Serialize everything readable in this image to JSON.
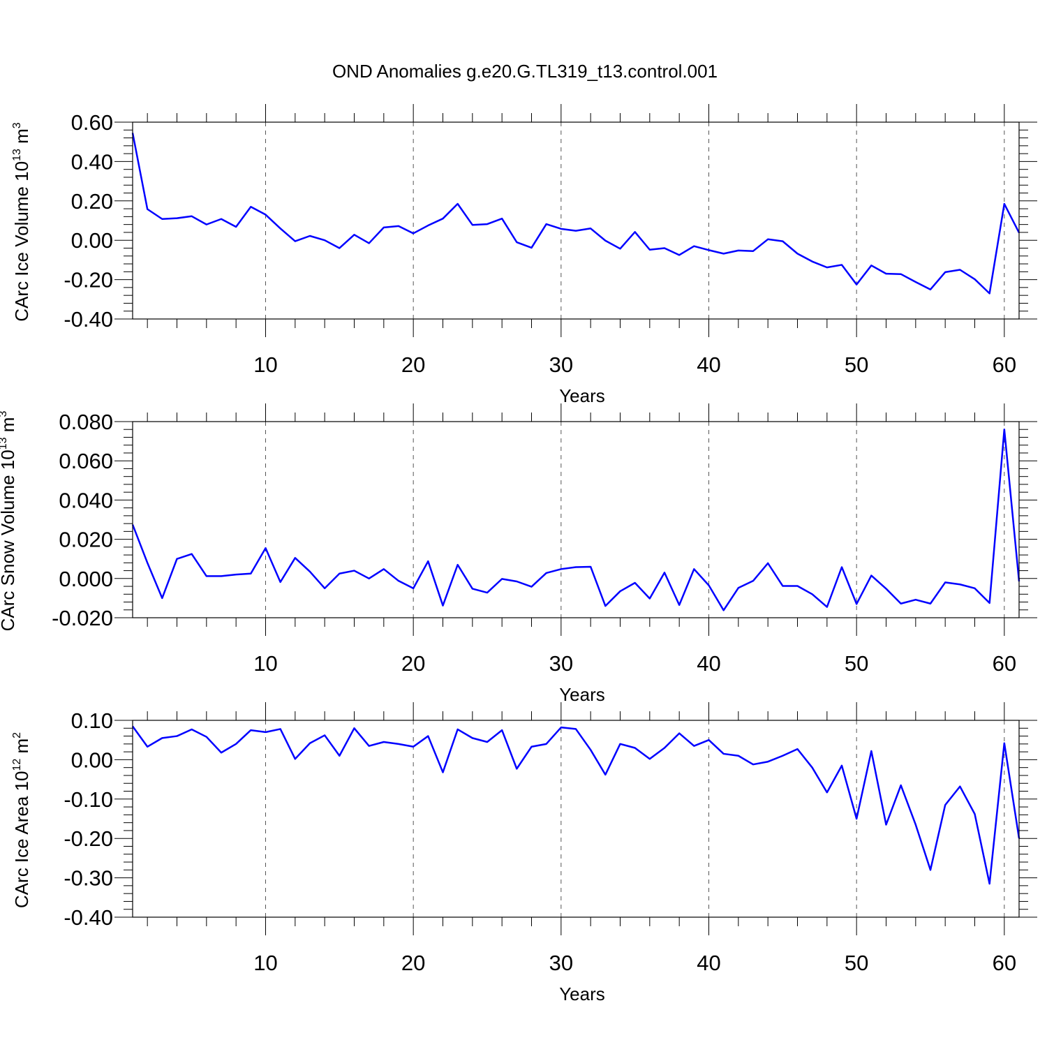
{
  "title": "OND Anomalies g.e20.G.TL319_t13.control.001",
  "line_color": "#0000ff",
  "chart_data": [
    {
      "type": "line",
      "title": "OND Anomalies g.e20.G.TL319_t13.control.001",
      "xlabel": "Years",
      "ylabel": {
        "base": "CArc Ice Volume 10",
        "exp": "13",
        "unit": " m",
        "unit_exp": "3"
      },
      "xlim": [
        1,
        61
      ],
      "ylim": [
        -0.4,
        0.6
      ],
      "xticks": [
        10,
        20,
        30,
        40,
        50,
        60
      ],
      "yticks": [
        -0.4,
        -0.2,
        0.0,
        0.2,
        0.4,
        0.6
      ],
      "yticklabels": [
        "-0.40",
        "-0.20",
        "0.00",
        "0.20",
        "0.40",
        "0.60"
      ],
      "grid": "vertical-dashed",
      "series": [
        {
          "x": [
            1,
            2,
            3,
            4,
            5,
            6,
            7,
            8,
            9,
            10,
            11,
            12,
            13,
            14,
            15,
            16,
            17,
            18,
            19,
            20,
            21,
            22,
            23,
            24,
            25,
            26,
            27,
            28,
            29,
            30,
            31,
            32,
            33,
            34,
            35,
            36,
            37,
            38,
            39,
            40,
            41,
            42,
            43,
            44,
            45,
            46,
            47,
            48,
            49,
            50,
            51,
            52,
            53,
            54,
            55,
            56,
            57,
            58,
            59,
            60,
            61
          ],
          "values": [
            0.545,
            0.158,
            0.108,
            0.112,
            0.122,
            0.08,
            0.108,
            0.068,
            0.17,
            0.13,
            0.06,
            -0.005,
            0.022,
            0.0,
            -0.04,
            0.028,
            -0.015,
            0.065,
            0.072,
            0.035,
            0.075,
            0.11,
            0.185,
            0.078,
            0.082,
            0.11,
            -0.01,
            -0.038,
            0.082,
            0.058,
            0.048,
            0.06,
            -0.002,
            -0.043,
            0.042,
            -0.048,
            -0.04,
            -0.075,
            -0.03,
            -0.05,
            -0.068,
            -0.052,
            -0.055,
            0.005,
            -0.005,
            -0.068,
            -0.108,
            -0.138,
            -0.125,
            -0.225,
            -0.128,
            -0.17,
            -0.172,
            -0.212,
            -0.25,
            -0.162,
            -0.15,
            -0.198,
            -0.27,
            0.185,
            0.038
          ]
        }
      ]
    },
    {
      "type": "line",
      "xlabel": "Years",
      "ylabel": {
        "base": "CArc Snow Volume 10",
        "exp": "13",
        "unit": " m",
        "unit_exp": "3"
      },
      "xlim": [
        1,
        61
      ],
      "ylim": [
        -0.02,
        0.08
      ],
      "xticks": [
        10,
        20,
        30,
        40,
        50,
        60
      ],
      "yticks": [
        -0.02,
        0.0,
        0.02,
        0.04,
        0.06,
        0.08
      ],
      "yticklabels": [
        "-0.020",
        "0.000",
        "0.020",
        "0.040",
        "0.060",
        "0.080"
      ],
      "grid": "vertical-dashed",
      "series": [
        {
          "x": [
            1,
            2,
            3,
            4,
            5,
            6,
            7,
            8,
            9,
            10,
            11,
            12,
            13,
            14,
            15,
            16,
            17,
            18,
            19,
            20,
            21,
            22,
            23,
            24,
            25,
            26,
            27,
            28,
            29,
            30,
            31,
            32,
            33,
            34,
            35,
            36,
            37,
            38,
            39,
            40,
            41,
            42,
            43,
            44,
            45,
            46,
            47,
            48,
            49,
            50,
            51,
            52,
            53,
            54,
            55,
            56,
            57,
            58,
            59,
            60,
            61
          ],
          "values": [
            0.0275,
            0.008,
            -0.01,
            0.01,
            0.0125,
            0.0012,
            0.0012,
            0.002,
            0.0025,
            0.0155,
            -0.0018,
            0.0105,
            0.0035,
            -0.005,
            0.0025,
            0.004,
            0.0,
            0.0048,
            -0.0012,
            -0.005,
            0.0088,
            -0.0138,
            0.007,
            -0.0052,
            -0.0072,
            -0.0002,
            -0.0015,
            -0.0042,
            0.0028,
            0.0048,
            0.0058,
            0.006,
            -0.014,
            -0.0065,
            -0.0022,
            -0.0102,
            0.003,
            -0.0135,
            0.0048,
            -0.0035,
            -0.0162,
            -0.0048,
            -0.0012,
            0.0078,
            -0.0038,
            -0.0038,
            -0.008,
            -0.0145,
            0.0058,
            -0.013,
            0.0015,
            -0.0052,
            -0.0128,
            -0.0108,
            -0.0128,
            -0.002,
            -0.003,
            -0.005,
            -0.0125,
            0.076,
            -0.0015
          ]
        }
      ]
    },
    {
      "type": "line",
      "xlabel": "Years",
      "ylabel": {
        "base": "CArc Ice Area 10",
        "exp": "12",
        "unit": " m",
        "unit_exp": "2"
      },
      "xlim": [
        1,
        61
      ],
      "ylim": [
        -0.4,
        0.1
      ],
      "xticks": [
        10,
        20,
        30,
        40,
        50,
        60
      ],
      "yticks": [
        -0.4,
        -0.3,
        -0.2,
        -0.1,
        0.0,
        0.1
      ],
      "yticklabels": [
        "-0.40",
        "-0.30",
        "-0.20",
        "-0.10",
        "0.00",
        "0.10"
      ],
      "grid": "vertical-dashed",
      "series": [
        {
          "x": [
            1,
            2,
            3,
            4,
            5,
            6,
            7,
            8,
            9,
            10,
            11,
            12,
            13,
            14,
            15,
            16,
            17,
            18,
            19,
            20,
            21,
            22,
            23,
            24,
            25,
            26,
            27,
            28,
            29,
            30,
            31,
            32,
            33,
            34,
            35,
            36,
            37,
            38,
            39,
            40,
            41,
            42,
            43,
            44,
            45,
            46,
            47,
            48,
            49,
            50,
            51,
            52,
            53,
            54,
            55,
            56,
            57,
            58,
            59,
            60,
            61
          ],
          "values": [
            0.085,
            0.033,
            0.055,
            0.06,
            0.077,
            0.058,
            0.018,
            0.04,
            0.075,
            0.07,
            0.078,
            0.002,
            0.042,
            0.062,
            0.01,
            0.08,
            0.035,
            0.045,
            0.04,
            0.033,
            0.06,
            -0.032,
            0.077,
            0.055,
            0.045,
            0.075,
            -0.023,
            0.033,
            0.04,
            0.082,
            0.078,
            0.025,
            -0.038,
            0.04,
            0.03,
            0.002,
            0.03,
            0.067,
            0.035,
            0.05,
            0.015,
            0.01,
            -0.012,
            -0.005,
            0.01,
            0.027,
            -0.02,
            -0.083,
            -0.015,
            -0.15,
            0.022,
            -0.165,
            -0.065,
            -0.165,
            -0.28,
            -0.115,
            -0.068,
            -0.138,
            -0.315,
            0.042,
            -0.2
          ]
        }
      ]
    }
  ]
}
